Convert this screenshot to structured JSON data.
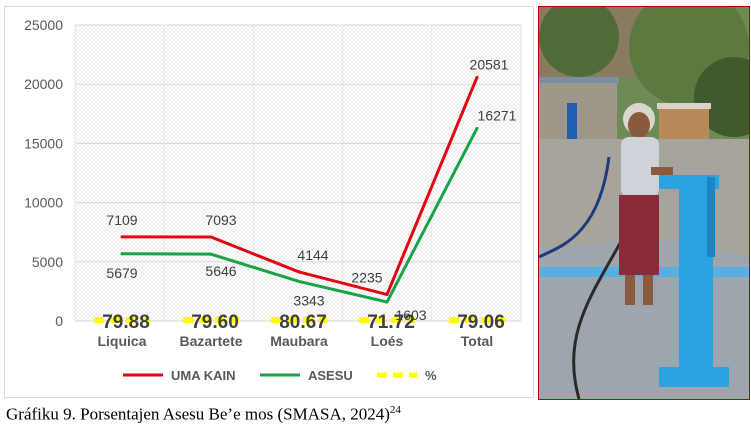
{
  "chart_data": {
    "type": "line",
    "categories": [
      "Liquica",
      "Bazartete",
      "Maubara",
      "Loés",
      "Total"
    ],
    "series": [
      {
        "name": "UMA KAIN",
        "values": [
          7109,
          7093,
          4144,
          2235,
          20581
        ],
        "color": "#e30613"
      },
      {
        "name": "ASESU",
        "values": [
          5679,
          5646,
          3343,
          1603,
          16271
        ],
        "color": "#1aa34a"
      },
      {
        "name": "%",
        "values": [
          79.88,
          79.6,
          80.67,
          71.72,
          79.06
        ],
        "color": "#ffff00"
      }
    ],
    "yticks": [
      "0",
      "5000",
      "10000",
      "15000",
      "20000",
      "25000"
    ],
    "ylim": [
      0,
      25000
    ],
    "percent_labels": [
      "79.88",
      "79.60",
      "80.67",
      "71.72",
      "79.06"
    ],
    "value_labels_uma_kain": [
      "7109",
      "7093",
      "4144",
      "2235",
      "20581"
    ],
    "value_labels_asesu": [
      "5679",
      "5646",
      "3343",
      "1603",
      "16271"
    ],
    "legend_position": "bottom",
    "background_pattern": "dotted",
    "grid": true
  },
  "caption": {
    "text": "Gráfiku 9. Porsentajen Asesu Be’e mos (SMASA, 2024)",
    "footnote": "24"
  },
  "photo": {
    "subject": "elderly woman at blue water tap"
  }
}
